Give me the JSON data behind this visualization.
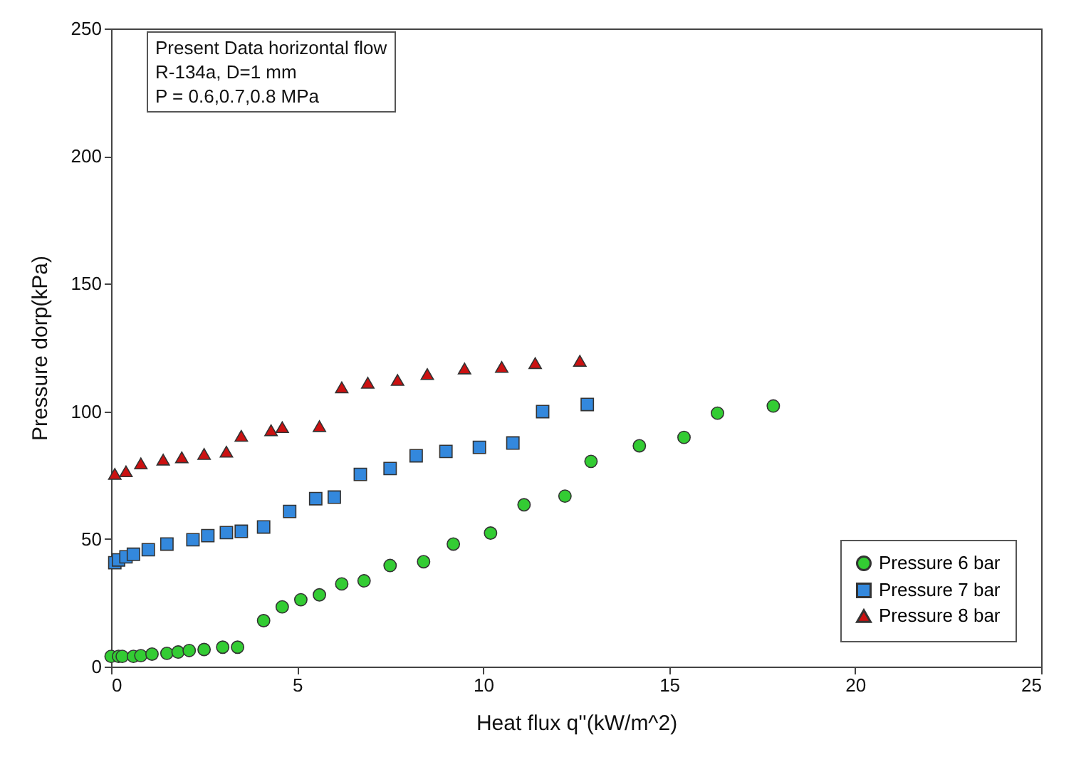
{
  "chart_data": {
    "type": "scatter",
    "xlabel": "Heat flux q''(kW/m^2)",
    "ylabel": "Pressure  dorp(kPa)",
    "annotations": [
      "Present Data horizontal flow",
      "R-134a,  D=1 mm",
      "P = 0.6,0.7,0.8 MPa"
    ],
    "xlim": [
      0,
      25
    ],
    "xticks": [
      0,
      5,
      10,
      15,
      20,
      25
    ],
    "ylim": [
      0,
      250
    ],
    "yticks": [
      0,
      50,
      100,
      150,
      200,
      250
    ],
    "grid": false,
    "legend": "bottom right",
    "series": [
      {
        "name": "Pressure 6 bar",
        "color": "#33cc33",
        "marker": "circle",
        "x": [
          0.0,
          0.2,
          0.3,
          0.6,
          0.8,
          1.1,
          1.5,
          1.8,
          2.1,
          2.5,
          3.0,
          3.4,
          4.1,
          4.6,
          5.1,
          5.6,
          6.2,
          6.8,
          7.5,
          8.4,
          9.2,
          10.2,
          11.1,
          12.2,
          12.9,
          14.2,
          15.4,
          16.3,
          17.8
        ],
        "values": [
          4,
          4,
          4,
          4,
          4.3,
          4.9,
          5.2,
          5.7,
          6.3,
          6.7,
          7.6,
          7.6,
          18,
          23.4,
          26.2,
          28.1,
          32.4,
          33.6,
          39.6,
          41.1,
          48,
          52.3,
          63.4,
          66.8,
          80.4,
          86.5,
          89.8,
          99.3,
          102.1
        ]
      },
      {
        "name": "Pressure 7 bar",
        "color": "#3388dd",
        "marker": "square",
        "x": [
          0.1,
          0.2,
          0.4,
          0.6,
          1.0,
          1.5,
          2.2,
          2.6,
          3.1,
          3.5,
          4.1,
          4.8,
          5.5,
          6.0,
          6.7,
          7.5,
          8.2,
          9.0,
          9.9,
          10.8,
          11.6,
          12.8
        ],
        "values": [
          40.7,
          41.8,
          43,
          44,
          45.8,
          48,
          49.7,
          51.3,
          52.5,
          53,
          54.7,
          60.8,
          65.8,
          66.4,
          75.3,
          77.6,
          82.6,
          84.3,
          85.9,
          87.6,
          99.9,
          102.7
        ]
      },
      {
        "name": "Pressure 8 bar",
        "color": "#cc1111",
        "marker": "triangle",
        "x": [
          0.1,
          0.4,
          0.8,
          1.4,
          1.9,
          2.5,
          3.1,
          3.5,
          4.3,
          4.6,
          5.6,
          6.2,
          6.9,
          7.7,
          8.5,
          9.5,
          10.5,
          11.4,
          12.6
        ],
        "values": [
          75.5,
          76.5,
          79.6,
          81.1,
          82,
          83.3,
          84.2,
          90.4,
          92.6,
          93.8,
          94.2,
          109.4,
          111.2,
          112.3,
          114.6,
          116.8,
          117.4,
          118.9,
          119.8
        ]
      }
    ]
  }
}
